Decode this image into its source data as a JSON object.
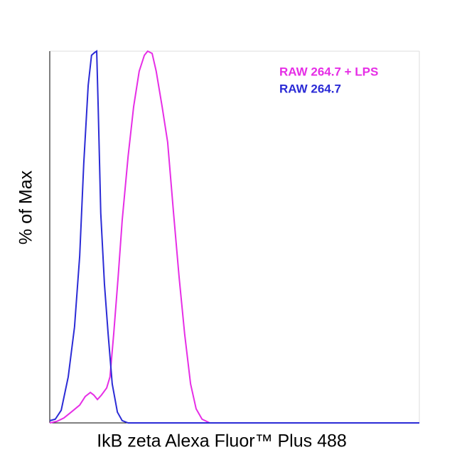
{
  "chart_data": {
    "type": "line",
    "x_label": "IkB zeta Alexa Fluor™ Plus 488",
    "y_label": "% of Max",
    "xlim": [
      0,
      100
    ],
    "ylim": [
      0,
      100
    ],
    "legend": "top-right",
    "series": [
      {
        "name": "RAW 264.7 + LPS",
        "color": "#e62ee6",
        "x": [
          0,
          1.9,
          3.8,
          5.8,
          8.1,
          9.6,
          11.0,
          11.9,
          12.9,
          14.0,
          15.4,
          16.3,
          17.3,
          18.5,
          19.6,
          21.2,
          22.7,
          24.2,
          25.6,
          26.5,
          27.7,
          28.8,
          30.4,
          31.9,
          33.5,
          35.0,
          36.5,
          38.1,
          39.6,
          41.2,
          43.3,
          100
        ],
        "values": [
          0,
          0.4,
          1.3,
          2.9,
          4.8,
          7.1,
          8.2,
          7.5,
          6.3,
          7.5,
          9.4,
          12.4,
          23.9,
          39.2,
          54.5,
          71.7,
          85.1,
          94.6,
          98.9,
          100,
          99.4,
          94.6,
          85.1,
          75.5,
          56.4,
          39.2,
          23.9,
          10.5,
          3.8,
          1.0,
          0,
          0
        ]
      },
      {
        "name": "RAW 264.7",
        "color": "#2b2bd6",
        "x": [
          0,
          1.5,
          3.1,
          5.0,
          6.7,
          8.1,
          9.2,
          10.4,
          11.3,
          12.1,
          12.7,
          13.1,
          13.8,
          14.8,
          15.8,
          16.9,
          18.3,
          19.6,
          21.2,
          100
        ],
        "values": [
          0.6,
          1.0,
          3.4,
          12.4,
          25.8,
          44.9,
          69.8,
          90.8,
          98.9,
          99.6,
          100,
          85.1,
          56.4,
          37.3,
          23.9,
          10.5,
          2.9,
          0.6,
          0,
          0
        ]
      }
    ]
  }
}
